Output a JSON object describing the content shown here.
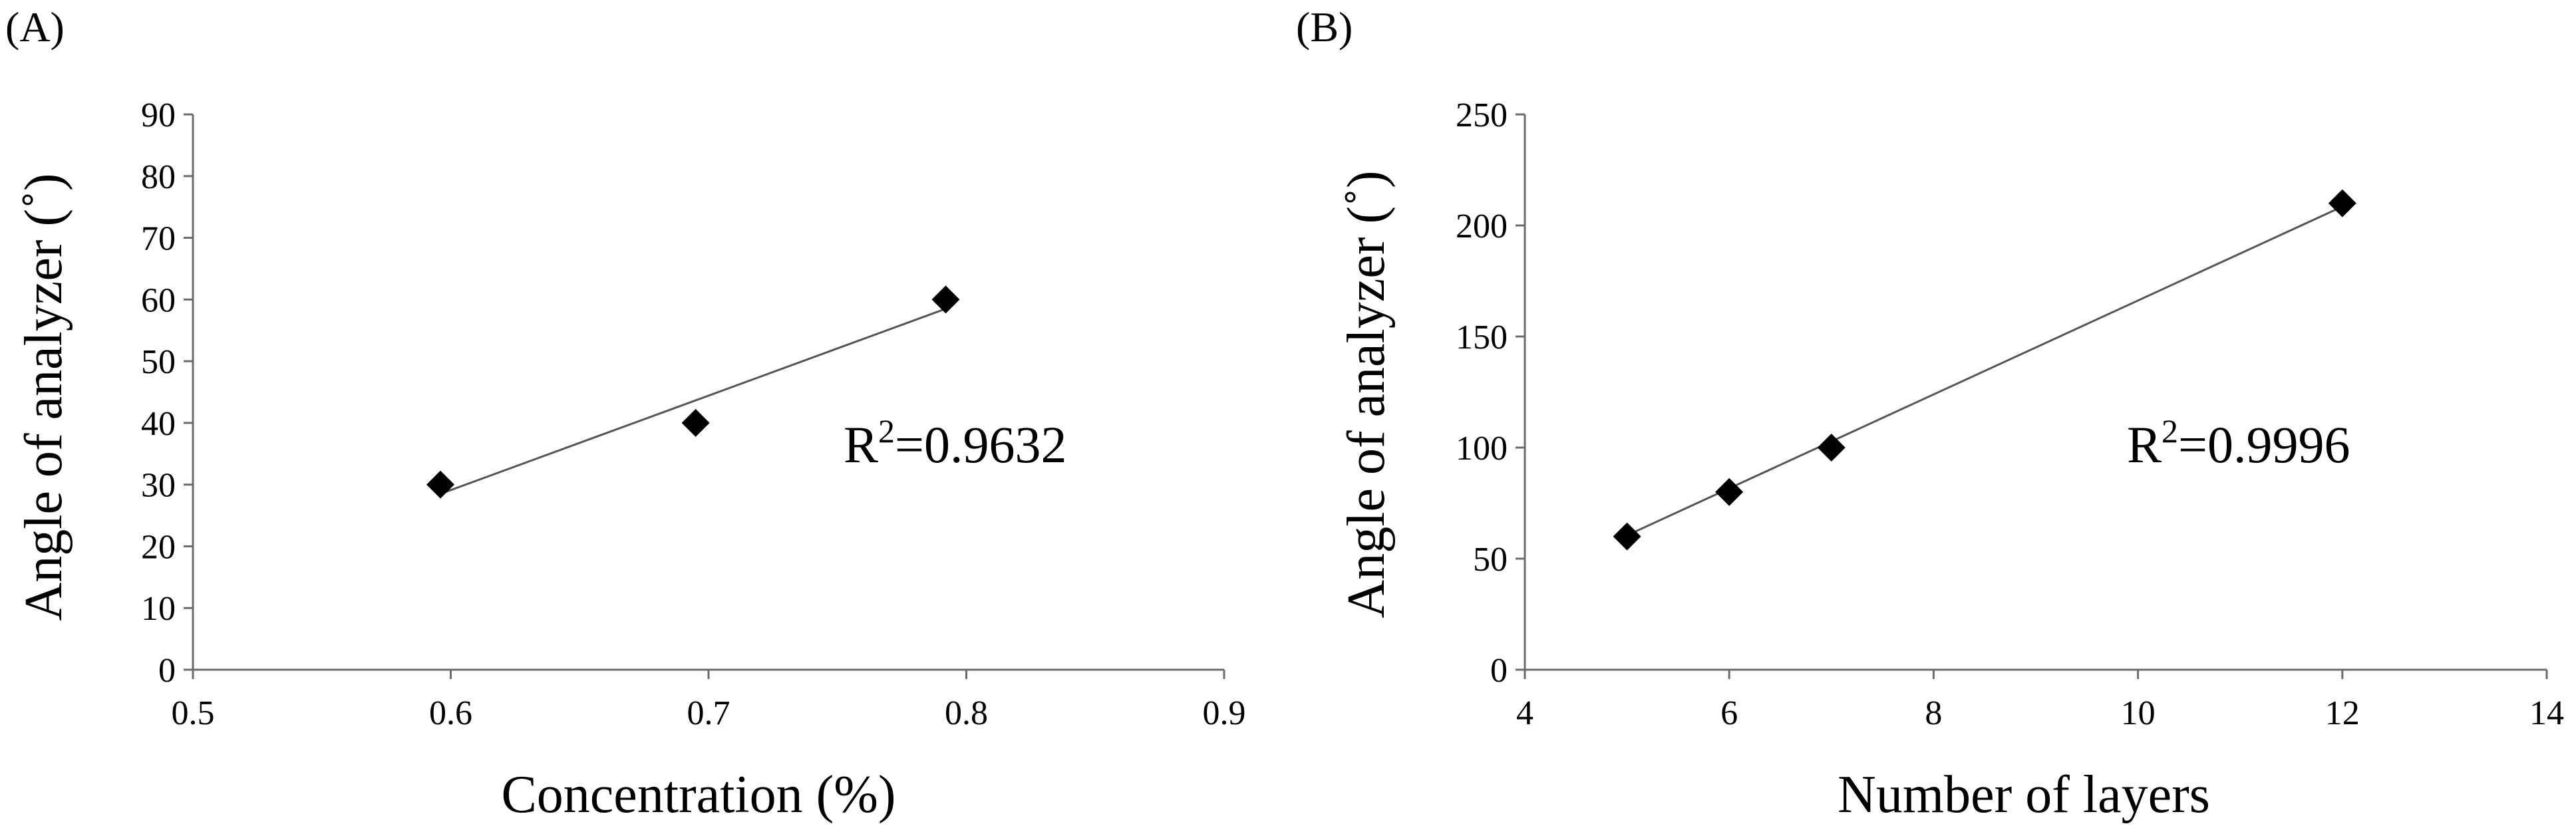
{
  "chart_data": [
    {
      "type": "scatter",
      "panel": "(A)",
      "title": "",
      "xlabel": "Concentration (%)",
      "ylabel": "Angle of analyzer (˚)",
      "xlim": [
        0.5,
        0.9
      ],
      "ylim": [
        0,
        90
      ],
      "xticks": [
        0.5,
        0.6,
        0.7,
        0.8,
        0.9
      ],
      "xtick_labels": [
        "0.5",
        "0.6",
        "0.7",
        "0.8",
        "0.9"
      ],
      "yticks": [
        0,
        10,
        20,
        30,
        40,
        50,
        60,
        70,
        80,
        90
      ],
      "ytick_labels": [
        "0",
        "10",
        "20",
        "30",
        "40",
        "50",
        "60",
        "70",
        "80",
        "90"
      ],
      "grid": false,
      "marker": "diamond",
      "marker_color": "#000000",
      "points": [
        {
          "x": 0.596,
          "y": 30
        },
        {
          "x": 0.695,
          "y": 40
        },
        {
          "x": 0.792,
          "y": 60
        }
      ],
      "trendline": {
        "x": [
          0.596,
          0.792
        ],
        "y": [
          28.5,
          58.5
        ],
        "color": "#555555"
      },
      "annotation": {
        "r_label": "R",
        "r_exp": "2",
        "r_value": "=0.9632"
      }
    },
    {
      "type": "scatter",
      "panel": "(B)",
      "title": "",
      "xlabel": "Number of layers",
      "ylabel": "Angle of analyzer (˚)",
      "xlim": [
        4,
        14
      ],
      "ylim": [
        0,
        250
      ],
      "xticks": [
        4,
        6,
        8,
        10,
        12,
        14
      ],
      "xtick_labels": [
        "4",
        "6",
        "8",
        "10",
        "12",
        "14"
      ],
      "yticks": [
        0,
        50,
        100,
        150,
        200,
        250
      ],
      "ytick_labels": [
        "0",
        "50",
        "100",
        "150",
        "200",
        "250"
      ],
      "grid": false,
      "marker": "diamond",
      "marker_color": "#000000",
      "points": [
        {
          "x": 5,
          "y": 60
        },
        {
          "x": 6,
          "y": 80
        },
        {
          "x": 7,
          "y": 100
        },
        {
          "x": 12,
          "y": 210
        }
      ],
      "trendline": {
        "x": [
          5,
          12
        ],
        "y": [
          60.5,
          208.5
        ],
        "color": "#555555"
      },
      "annotation": {
        "r_label": "R",
        "r_exp": "2",
        "r_value": "=0.9996"
      }
    }
  ]
}
